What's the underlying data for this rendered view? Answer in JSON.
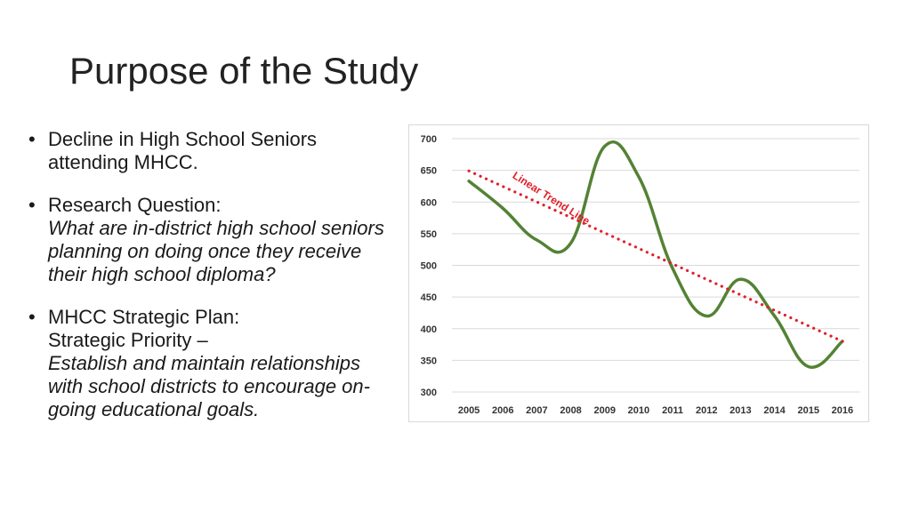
{
  "slide": {
    "title": "Purpose of the Study"
  },
  "bullets": [
    {
      "marker": "•",
      "lines": [
        "Decline in High School Seniors",
        "attending MHCC."
      ],
      "italic_lines": []
    },
    {
      "marker": "•",
      "lines": [
        "Research Question:"
      ],
      "italic_lines": [
        "What are in-district high school seniors",
        "planning on doing once they receive",
        "their high school diploma?"
      ]
    },
    {
      "marker": "•",
      "lines": [
        "MHCC Strategic Plan:",
        "Strategic Priority –"
      ],
      "italic_lines": [
        "Establish and maintain relationships",
        "with school districts to encourage on-",
        "going educational goals."
      ]
    }
  ],
  "chart_data": {
    "type": "line",
    "x": [
      "2005",
      "2006",
      "2007",
      "2008",
      "2009",
      "2010",
      "2011",
      "2012",
      "2013",
      "2014",
      "2015",
      "2016"
    ],
    "series": [
      {
        "values": [
          633,
          590,
          540,
          535,
          688,
          640,
          495,
          420,
          478,
          420,
          340,
          380
        ],
        "color": "#548235",
        "style": "smooth"
      },
      {
        "name": "Linear Trend Line",
        "values": [
          649,
          625,
          600,
          576,
          551,
          527,
          502,
          478,
          453,
          429,
          404,
          380
        ],
        "color": "#e0202a",
        "style": "dotted"
      }
    ],
    "ylim": [
      300,
      700
    ],
    "yticks": [
      "300",
      "350",
      "400",
      "450",
      "500",
      "550",
      "600",
      "650",
      "700"
    ],
    "grid": true,
    "annotation": "Linear Trend Line"
  }
}
